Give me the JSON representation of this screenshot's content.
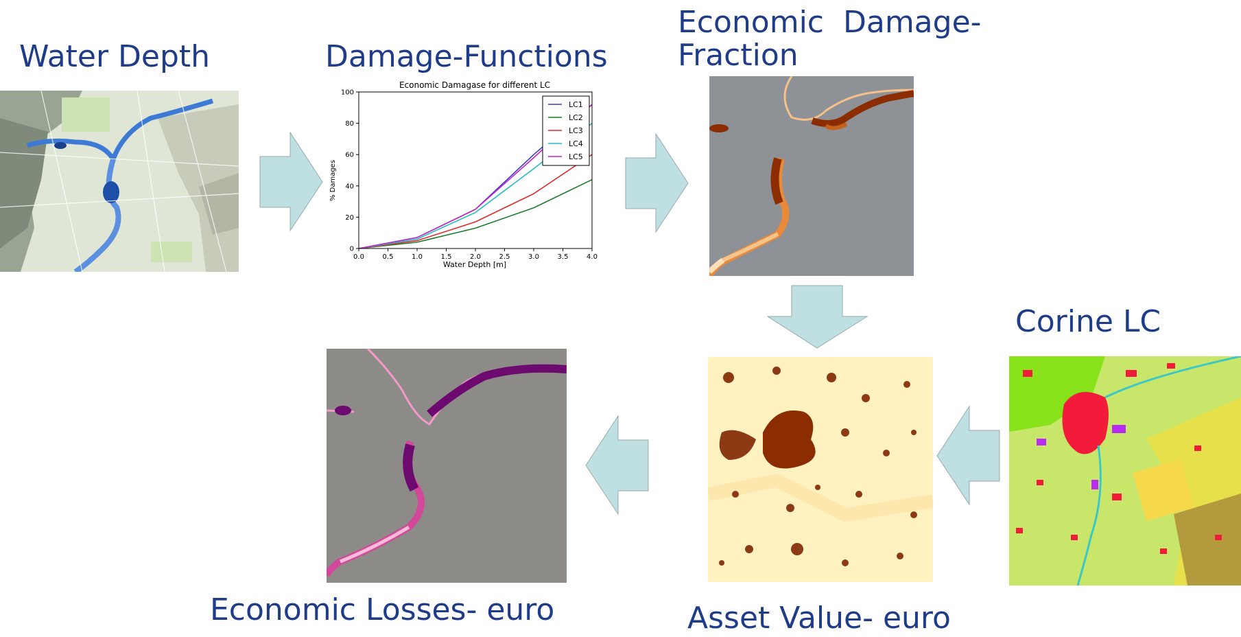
{
  "titles": {
    "water_depth": "Water Depth",
    "damage_functions": "Damage-Functions",
    "damage_fraction_line1": "Economic  Damage-",
    "damage_fraction_line2": "Fraction",
    "corine": "Corine LC",
    "asset_value": "Asset Value- euro",
    "economic_losses": "Economic Losses- euro"
  },
  "colors": {
    "title": "#1f3c88",
    "arrow_fill": "#bfe0e3",
    "arrow_stroke": "#9aa8aa",
    "fraction_bg": "#8e9296",
    "losses_bg": "#8c8b88",
    "asset_bg": "#fff2c0"
  },
  "chart_data": {
    "type": "line",
    "title": "Economic Damagase for different LC",
    "xlabel": "Water Depth [m]",
    "ylabel": "% Damages",
    "xlim": [
      0,
      4
    ],
    "ylim": [
      0,
      100
    ],
    "xticks": [
      "0.0",
      "0.5",
      "1.0",
      "1.5",
      "2.0",
      "2.5",
      "3.0",
      "3.5",
      "4.0"
    ],
    "yticks": [
      "0",
      "20",
      "40",
      "60",
      "80",
      "100"
    ],
    "legend_position": "top-right",
    "x": [
      0,
      1,
      2,
      3,
      4
    ],
    "series": [
      {
        "name": "LC1",
        "color": "#3b3bd6",
        "values": [
          0,
          7,
          25,
          60,
          92
        ]
      },
      {
        "name": "LC2",
        "color": "#1b7a2a",
        "values": [
          0,
          4,
          13,
          26,
          44
        ]
      },
      {
        "name": "LC3",
        "color": "#e0292d",
        "values": [
          0,
          5,
          17,
          35,
          60
        ]
      },
      {
        "name": "LC4",
        "color": "#22bcc4",
        "values": [
          0,
          6,
          23,
          51,
          80
        ]
      },
      {
        "name": "LC5",
        "color": "#c324c3",
        "values": [
          0,
          7,
          25,
          58,
          92
        ]
      }
    ]
  }
}
